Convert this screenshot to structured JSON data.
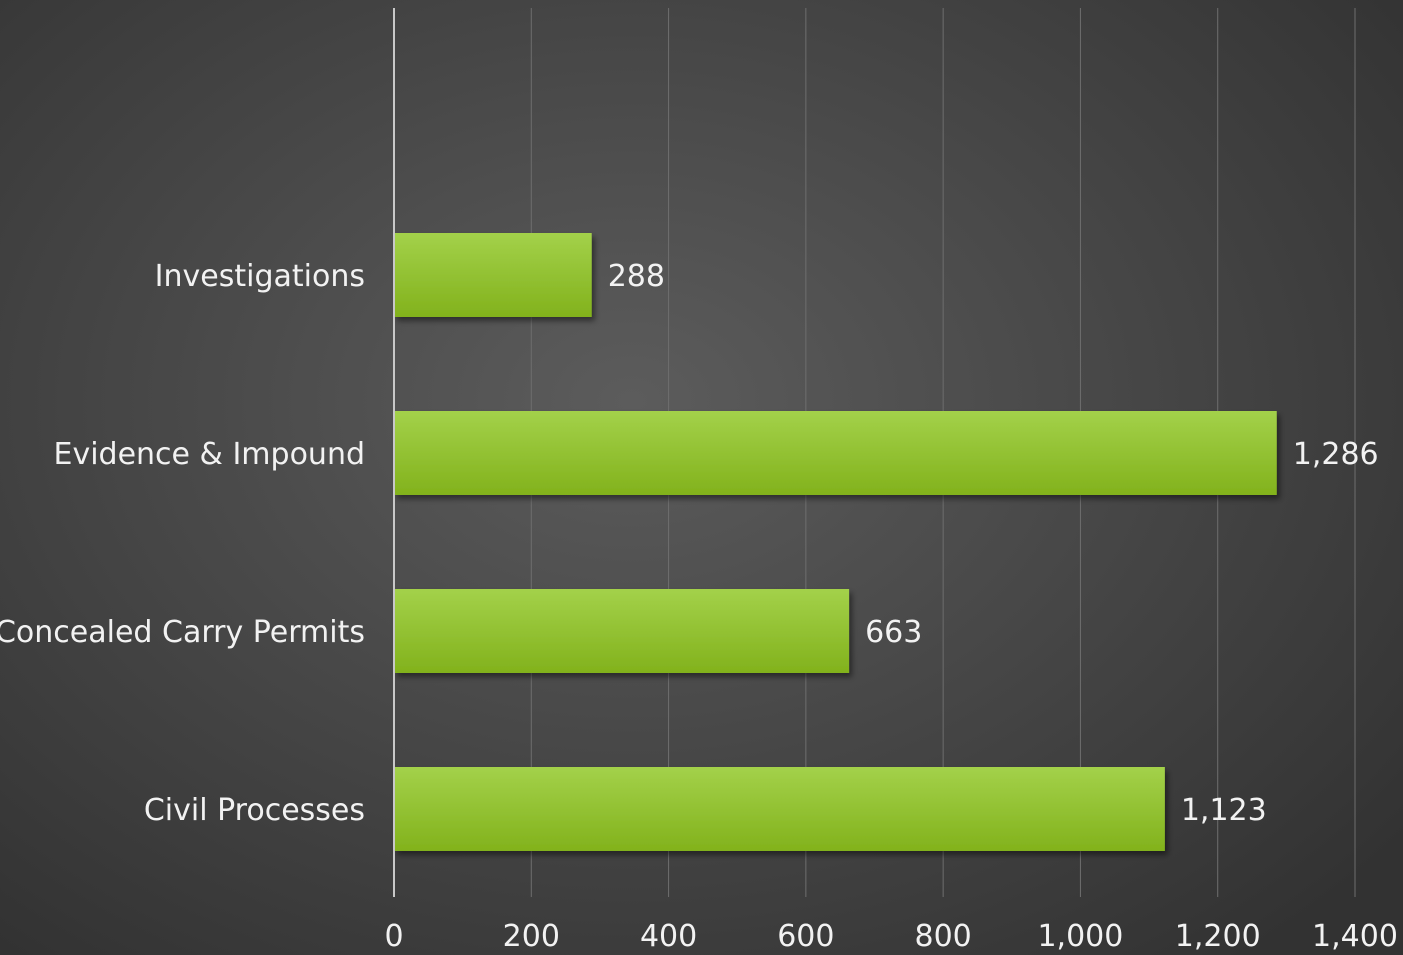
{
  "chart_data": {
    "type": "bar",
    "orientation": "horizontal",
    "categories": [
      "Investigations",
      "Evidence & Impound",
      "Concealed Carry Permits",
      "Civil Processes"
    ],
    "values": [
      288,
      1286,
      663,
      1123
    ],
    "value_labels": [
      "288",
      "1,286",
      "663",
      "1,123"
    ],
    "title": "",
    "xlabel": "",
    "ylabel": "",
    "xlim": [
      0,
      1400
    ],
    "x_ticks": [
      0,
      200,
      400,
      600,
      800,
      1000,
      1200,
      1400
    ],
    "x_tick_labels": [
      "0",
      "200",
      "400",
      "600",
      "800",
      "1,000",
      "1,200",
      "1,400"
    ],
    "grid": true,
    "legend": "none",
    "colors": {
      "bar_top": "#a3d14a",
      "bar_bottom": "#82b21c",
      "text": "#f2f2f2",
      "gridline": "#6e6e6e",
      "axis_line": "#c8c8c8"
    }
  }
}
